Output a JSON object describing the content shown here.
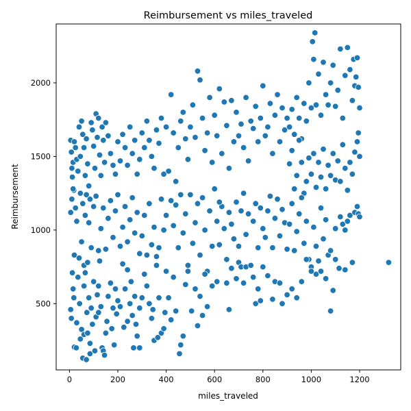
{
  "chart_data": {
    "type": "scatter",
    "title": "Reimbursement vs miles_traveled",
    "xlabel": "miles_traveled",
    "ylabel": "Reimbursement",
    "xlim": [
      -55,
      1370
    ],
    "ylim": [
      50,
      2400
    ],
    "xticks": [
      0,
      200,
      400,
      600,
      800,
      1000,
      1200
    ],
    "yticks": [
      500,
      1000,
      1500,
      2000
    ],
    "grid": false,
    "color": "#1f77b4",
    "points": [
      [
        5,
        1610
      ],
      [
        8,
        1530
      ],
      [
        10,
        1420
      ],
      [
        12,
        1360
      ],
      [
        15,
        1460
      ],
      [
        18,
        1270
      ],
      [
        20,
        1600
      ],
      [
        25,
        1560
      ],
      [
        30,
        1480
      ],
      [
        35,
        1400
      ],
      [
        40,
        1700
      ],
      [
        45,
        1500
      ],
      [
        50,
        1740
      ],
      [
        55,
        1650
      ],
      [
        60,
        1560
      ],
      [
        65,
        1370
      ],
      [
        70,
        1620
      ],
      [
        75,
        1450
      ],
      [
        80,
        1300
      ],
      [
        85,
        1210
      ],
      [
        90,
        1730
      ],
      [
        95,
        1680
      ],
      [
        100,
        1570
      ],
      [
        105,
        1420
      ],
      [
        110,
        1790
      ],
      [
        115,
        1630
      ],
      [
        120,
        1760
      ],
      [
        125,
        1510
      ],
      [
        130,
        1370
      ],
      [
        135,
        1700
      ],
      [
        140,
        1610
      ],
      [
        145,
        1460
      ],
      [
        150,
        1730
      ],
      [
        160,
        1640
      ],
      [
        170,
        1520
      ],
      [
        180,
        1440
      ],
      [
        190,
        1380
      ],
      [
        200,
        1600
      ],
      [
        210,
        1470
      ],
      [
        220,
        1650
      ],
      [
        230,
        1560
      ],
      [
        240,
        1440
      ],
      [
        250,
        1700
      ],
      [
        260,
        1520
      ],
      [
        270,
        1610
      ],
      [
        280,
        1380
      ],
      [
        290,
        1480
      ],
      [
        300,
        1660
      ],
      [
        310,
        1560
      ],
      [
        320,
        1740
      ],
      [
        330,
        1610
      ],
      [
        340,
        1500
      ],
      [
        350,
        1420
      ],
      [
        360,
        1680
      ],
      [
        370,
        1590
      ],
      [
        380,
        1760
      ],
      [
        390,
        1380
      ],
      [
        400,
        1700
      ],
      [
        5,
        1120
      ],
      [
        10,
        1210
      ],
      [
        15,
        1280
      ],
      [
        20,
        830
      ],
      [
        25,
        1150
      ],
      [
        30,
        1060
      ],
      [
        40,
        810
      ],
      [
        45,
        1250
      ],
      [
        50,
        920
      ],
      [
        55,
        1180
      ],
      [
        60,
        760
      ],
      [
        65,
        1100
      ],
      [
        70,
        1240
      ],
      [
        80,
        1050
      ],
      [
        90,
        880
      ],
      [
        100,
        1160
      ],
      [
        110,
        1230
      ],
      [
        120,
        860
      ],
      [
        130,
        1010
      ],
      [
        140,
        1150
      ],
      [
        150,
        870
      ],
      [
        160,
        1080
      ],
      [
        170,
        1200
      ],
      [
        180,
        950
      ],
      [
        190,
        1130
      ],
      [
        200,
        1240
      ],
      [
        210,
        890
      ],
      [
        220,
        1020
      ],
      [
        230,
        1160
      ],
      [
        240,
        920
      ],
      [
        250,
        1070
      ],
      [
        260,
        1220
      ],
      [
        270,
        980
      ],
      [
        280,
        1120
      ],
      [
        290,
        840
      ],
      [
        300,
        960
      ],
      [
        310,
        1100
      ],
      [
        320,
        830
      ],
      [
        330,
        1180
      ],
      [
        340,
        900
      ],
      [
        350,
        1020
      ],
      [
        360,
        820
      ],
      [
        370,
        880
      ],
      [
        380,
        1210
      ],
      [
        390,
        1000
      ],
      [
        400,
        1100
      ],
      [
        5,
        460
      ],
      [
        8,
        400
      ],
      [
        12,
        710
      ],
      [
        15,
        600
      ],
      [
        18,
        540
      ],
      [
        20,
        205
      ],
      [
        28,
        200
      ],
      [
        35,
        680
      ],
      [
        42,
        500
      ],
      [
        50,
        325
      ],
      [
        55,
        130
      ],
      [
        60,
        620
      ],
      [
        65,
        710
      ],
      [
        70,
        120
      ],
      [
        72,
        440
      ],
      [
        75,
        780
      ],
      [
        80,
        540
      ],
      [
        85,
        160
      ],
      [
        90,
        470
      ],
      [
        95,
        360
      ],
      [
        100,
        650
      ],
      [
        110,
        410
      ],
      [
        115,
        560
      ],
      [
        120,
        620
      ],
      [
        125,
        790
      ],
      [
        130,
        480
      ],
      [
        135,
        200
      ],
      [
        140,
        180
      ],
      [
        145,
        150
      ],
      [
        150,
        300
      ],
      [
        160,
        550
      ],
      [
        170,
        640
      ],
      [
        180,
        470
      ],
      [
        185,
        220
      ],
      [
        190,
        600
      ],
      [
        195,
        430
      ],
      [
        200,
        520
      ],
      [
        210,
        480
      ],
      [
        220,
        770
      ],
      [
        225,
        340
      ],
      [
        230,
        600
      ],
      [
        240,
        730
      ],
      [
        250,
        500
      ],
      [
        255,
        650
      ],
      [
        260,
        420
      ],
      [
        265,
        200
      ],
      [
        270,
        550
      ],
      [
        275,
        360
      ],
      [
        280,
        280
      ],
      [
        290,
        470
      ],
      [
        300,
        540
      ],
      [
        310,
        700
      ],
      [
        320,
        620
      ],
      [
        340,
        400
      ],
      [
        350,
        250
      ],
      [
        360,
        760
      ],
      [
        370,
        540
      ],
      [
        380,
        300
      ],
      [
        390,
        330
      ],
      [
        400,
        720
      ],
      [
        30,
        370
      ],
      [
        45,
        260
      ],
      [
        60,
        290
      ],
      [
        75,
        300
      ],
      [
        85,
        230
      ],
      [
        105,
        180
      ],
      [
        120,
        440
      ],
      [
        155,
        380
      ],
      [
        175,
        330
      ],
      [
        240,
        380
      ],
      [
        290,
        200
      ],
      [
        330,
        500
      ],
      [
        345,
        460
      ],
      [
        365,
        270
      ],
      [
        395,
        440
      ],
      [
        410,
        1400
      ],
      [
        420,
        1920
      ],
      [
        430,
        1660
      ],
      [
        440,
        1330
      ],
      [
        450,
        1560
      ],
      [
        460,
        1740
      ],
      [
        470,
        1800
      ],
      [
        480,
        1620
      ],
      [
        490,
        1480
      ],
      [
        500,
        1700
      ],
      [
        510,
        1850
      ],
      [
        520,
        1630
      ],
      [
        530,
        2080
      ],
      [
        540,
        2020
      ],
      [
        550,
        1760
      ],
      [
        560,
        1540
      ],
      [
        570,
        1660
      ],
      [
        580,
        1900
      ],
      [
        590,
        1460
      ],
      [
        600,
        1780
      ],
      [
        610,
        1640
      ],
      [
        620,
        1960
      ],
      [
        630,
        1520
      ],
      [
        640,
        1870
      ],
      [
        650,
        1710
      ],
      [
        660,
        1420
      ],
      [
        670,
        1880
      ],
      [
        680,
        1600
      ],
      [
        690,
        1800
      ],
      [
        700,
        1640
      ],
      [
        710,
        1720
      ],
      [
        720,
        1560
      ],
      [
        730,
        1900
      ],
      [
        740,
        1470
      ],
      [
        750,
        1740
      ],
      [
        760,
        1690
      ],
      [
        770,
        1840
      ],
      [
        780,
        1600
      ],
      [
        790,
        1760
      ],
      [
        800,
        1980
      ],
      [
        810,
        1640
      ],
      [
        820,
        1700
      ],
      [
        830,
        1860
      ],
      [
        840,
        1520
      ],
      [
        850,
        1780
      ],
      [
        860,
        1920
      ],
      [
        870,
        1600
      ],
      [
        880,
        1830
      ],
      [
        890,
        1680
      ],
      [
        900,
        1760
      ],
      [
        420,
        1200
      ],
      [
        430,
        1030
      ],
      [
        440,
        1170
      ],
      [
        450,
        880
      ],
      [
        460,
        1240
      ],
      [
        470,
        980
      ],
      [
        480,
        1110
      ],
      [
        490,
        760
      ],
      [
        500,
        1240
      ],
      [
        510,
        910
      ],
      [
        520,
        1050
      ],
      [
        530,
        1180
      ],
      [
        540,
        830
      ],
      [
        550,
        1220
      ],
      [
        560,
        1000
      ],
      [
        570,
        720
      ],
      [
        580,
        1130
      ],
      [
        590,
        890
      ],
      [
        600,
        1280
      ],
      [
        610,
        1060
      ],
      [
        620,
        900
      ],
      [
        630,
        1160
      ],
      [
        640,
        1010
      ],
      [
        650,
        800
      ],
      [
        660,
        1120
      ],
      [
        670,
        1040
      ],
      [
        680,
        940
      ],
      [
        690,
        1190
      ],
      [
        700,
        890
      ],
      [
        710,
        1130
      ],
      [
        720,
        1250
      ],
      [
        730,
        970
      ],
      [
        740,
        1110
      ],
      [
        750,
        760
      ],
      [
        760,
        1060
      ],
      [
        770,
        1180
      ],
      [
        780,
        880
      ],
      [
        790,
        1150
      ],
      [
        800,
        1010
      ],
      [
        810,
        950
      ],
      [
        820,
        1130
      ],
      [
        830,
        1230
      ],
      [
        840,
        880
      ],
      [
        850,
        1080
      ],
      [
        860,
        1210
      ],
      [
        870,
        960
      ],
      [
        880,
        1140
      ],
      [
        890,
        1050
      ],
      [
        900,
        870
      ],
      [
        410,
        540
      ],
      [
        420,
        390
      ],
      [
        430,
        680
      ],
      [
        440,
        450
      ],
      [
        455,
        160
      ],
      [
        460,
        220
      ],
      [
        470,
        280
      ],
      [
        480,
        630
      ],
      [
        490,
        720
      ],
      [
        505,
        450
      ],
      [
        520,
        600
      ],
      [
        530,
        350
      ],
      [
        540,
        550
      ],
      [
        550,
        420
      ],
      [
        560,
        700
      ],
      [
        570,
        480
      ],
      [
        590,
        620
      ],
      [
        610,
        650
      ],
      [
        620,
        1190
      ],
      [
        650,
        640
      ],
      [
        660,
        460
      ],
      [
        670,
        740
      ],
      [
        690,
        670
      ],
      [
        700,
        780
      ],
      [
        710,
        750
      ],
      [
        720,
        640
      ],
      [
        730,
        750
      ],
      [
        750,
        760
      ],
      [
        760,
        680
      ],
      [
        770,
        500
      ],
      [
        780,
        600
      ],
      [
        790,
        520
      ],
      [
        800,
        750
      ],
      [
        820,
        690
      ],
      [
        840,
        530
      ],
      [
        850,
        650
      ],
      [
        870,
        640
      ],
      [
        880,
        500
      ],
      [
        900,
        560
      ],
      [
        910,
        1700
      ],
      [
        920,
        1820
      ],
      [
        930,
        1650
      ],
      [
        940,
        1900
      ],
      [
        950,
        1760
      ],
      [
        960,
        1620
      ],
      [
        970,
        1860
      ],
      [
        980,
        1740
      ],
      [
        990,
        2000
      ],
      [
        1000,
        1830
      ],
      [
        1005,
        2280
      ],
      [
        1010,
        2160
      ],
      [
        1015,
        2340
      ],
      [
        1020,
        1850
      ],
      [
        1030,
        2060
      ],
      [
        1040,
        1780
      ],
      [
        1050,
        2140
      ],
      [
        1060,
        1920
      ],
      [
        1070,
        1850
      ],
      [
        1080,
        2000
      ],
      [
        1090,
        2120
      ],
      [
        1100,
        1840
      ],
      [
        1110,
        1950
      ],
      [
        1120,
        2230
      ],
      [
        1130,
        1760
      ],
      [
        1140,
        2050
      ],
      [
        1150,
        2240
      ],
      [
        1160,
        2090
      ],
      [
        1170,
        1880
      ],
      [
        1175,
        2160
      ],
      [
        1180,
        1980
      ],
      [
        1185,
        2040
      ],
      [
        1190,
        2170
      ],
      [
        1195,
        1970
      ],
      [
        1200,
        1830
      ],
      [
        910,
        1450
      ],
      [
        920,
        1540
      ],
      [
        930,
        1280
      ],
      [
        940,
        1370
      ],
      [
        950,
        1610
      ],
      [
        960,
        1460
      ],
      [
        970,
        1250
      ],
      [
        980,
        1330
      ],
      [
        990,
        1490
      ],
      [
        1000,
        1380
      ],
      [
        1010,
        1520
      ],
      [
        1020,
        1290
      ],
      [
        1030,
        1460
      ],
      [
        1040,
        1360
      ],
      [
        1050,
        1550
      ],
      [
        1060,
        1280
      ],
      [
        1070,
        1440
      ],
      [
        1080,
        1370
      ],
      [
        1090,
        1520
      ],
      [
        1100,
        1340
      ],
      [
        1110,
        1470
      ],
      [
        1120,
        1330
      ],
      [
        1130,
        1580
      ],
      [
        1140,
        1420
      ],
      [
        1150,
        1270
      ],
      [
        1160,
        1460
      ],
      [
        1170,
        1380
      ],
      [
        1180,
        1530
      ],
      [
        1190,
        1600
      ],
      [
        1195,
        1660
      ],
      [
        1200,
        1500
      ],
      [
        910,
        1040
      ],
      [
        920,
        1180
      ],
      [
        930,
        860
      ],
      [
        940,
        990
      ],
      [
        950,
        1110
      ],
      [
        960,
        1220
      ],
      [
        970,
        910
      ],
      [
        980,
        1060
      ],
      [
        990,
        800
      ],
      [
        1000,
        750
      ],
      [
        1010,
        1020
      ],
      [
        1020,
        890
      ],
      [
        1030,
        790
      ],
      [
        1040,
        1150
      ],
      [
        1050,
        940
      ],
      [
        1060,
        1070
      ],
      [
        1070,
        830
      ],
      [
        1080,
        860
      ],
      [
        1090,
        590
      ],
      [
        1100,
        1010
      ],
      [
        1120,
        1090
      ],
      [
        1130,
        1040
      ],
      [
        1140,
        1000
      ],
      [
        1150,
        1060
      ],
      [
        1160,
        1100
      ],
      [
        1170,
        780
      ],
      [
        1180,
        1120
      ],
      [
        1190,
        1160
      ],
      [
        1195,
        1110
      ],
      [
        1200,
        1090
      ],
      [
        920,
        600
      ],
      [
        940,
        540
      ],
      [
        960,
        650
      ],
      [
        980,
        800
      ],
      [
        1000,
        720
      ],
      [
        1020,
        700
      ],
      [
        1040,
        720
      ],
      [
        1060,
        670
      ],
      [
        1080,
        450
      ],
      [
        1100,
        800
      ],
      [
        1115,
        740
      ],
      [
        1140,
        730
      ],
      [
        1320,
        780
      ]
    ]
  }
}
